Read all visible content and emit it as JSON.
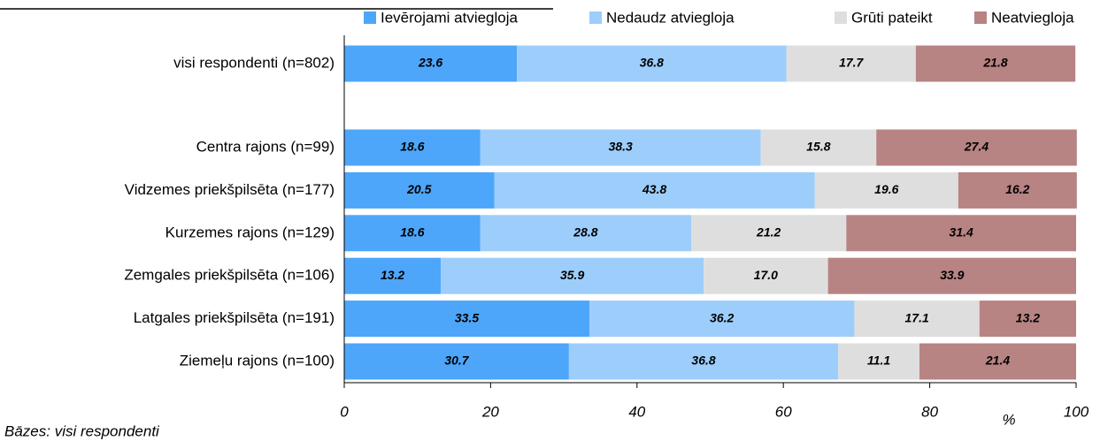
{
  "chart_data": {
    "type": "stacked_bar_horizontal",
    "categories": [
      "visi respondenti (n=802)",
      "Centra rajons (n=99)",
      "Vidzemes priekšpilsēta (n=177)",
      "Kurzemes rajons (n=129)",
      "Zemgales priekšpilsēta (n=106)",
      "Latgales priekšpilsēta (n=191)",
      "Ziemeļu rajons (n=100)"
    ],
    "series": [
      {
        "name": "Ievērojami atviegloja",
        "color": "#4da6f9",
        "values": [
          23.6,
          18.6,
          20.5,
          18.6,
          13.2,
          33.5,
          30.7
        ],
        "value_labels": [
          "23.6",
          "18.6",
          "20.5",
          "18.6",
          "13.2",
          "33.5",
          "30.7"
        ]
      },
      {
        "name": "Nedaudz atviegloja",
        "color": "#9dcdfb",
        "values": [
          36.8,
          38.3,
          43.8,
          28.8,
          35.9,
          36.2,
          36.8
        ],
        "value_labels": [
          "36.8",
          "38.3",
          "43.8",
          "28.8",
          "35.9",
          "36.2",
          "36.8"
        ]
      },
      {
        "name": "Grūti pateikt",
        "color": "#dedede",
        "values": [
          17.7,
          15.8,
          19.6,
          21.2,
          17.0,
          17.1,
          11.1
        ],
        "value_labels": [
          "17.7",
          "15.8",
          "19.6",
          "21.2",
          "17.0",
          "17.1",
          "11.1"
        ]
      },
      {
        "name": "Neatviegloja",
        "color": "#b88383",
        "values": [
          21.8,
          27.4,
          16.2,
          31.4,
          33.9,
          13.2,
          21.4
        ],
        "value_labels": [
          "21.8",
          "27.4",
          "16.2",
          "31.4",
          "33.9",
          "13.2",
          "21.4"
        ]
      }
    ],
    "xlim": [
      0,
      100
    ],
    "xticks": [
      0,
      20,
      40,
      60,
      80,
      100
    ],
    "x_label": "%",
    "footnote": "Bāzes: visi respondenti",
    "legend": "top"
  }
}
